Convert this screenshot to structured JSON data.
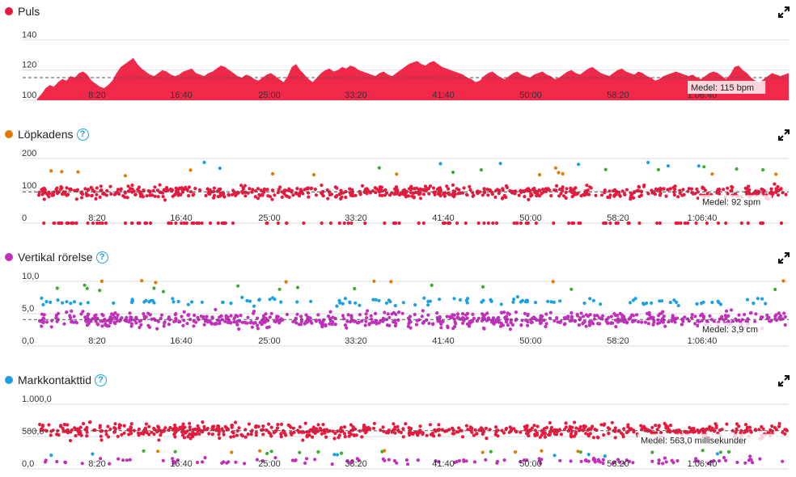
{
  "panels": [
    {
      "id": "puls",
      "title": "Puls",
      "has_help": false,
      "color": "#e8193c",
      "y_ticks": [
        "140",
        "120",
        "100"
      ],
      "x_ticks": [
        "8:20",
        "16:40",
        "25:00",
        "33:20",
        "41:40",
        "50:00",
        "58:20",
        "1:06:40"
      ],
      "average_label": "Medel: 115 bpm",
      "expand_icon": "expand-icon"
    },
    {
      "id": "lopkadens",
      "title": "Löpkadens",
      "has_help": true,
      "color": "#e07b00",
      "y_ticks": [
        "200",
        "100",
        "0"
      ],
      "x_ticks": [
        "8:20",
        "16:40",
        "25:00",
        "33:20",
        "41:40",
        "50:00",
        "58:20",
        "1:06:40"
      ],
      "average_label": "Medel: 92 spm",
      "expand_icon": "expand-icon"
    },
    {
      "id": "vertikal",
      "title": "Vertikal rörelse",
      "has_help": true,
      "color": "#c22fbd",
      "y_ticks": [
        "10,0",
        "5,0",
        "0,0"
      ],
      "x_ticks": [
        "8:20",
        "16:40",
        "25:00",
        "33:20",
        "41:40",
        "50:00",
        "58:20",
        "1:06:40"
      ],
      "average_label": "Medel: 3,9 cm",
      "expand_icon": "expand-icon"
    },
    {
      "id": "markkontakt",
      "title": "Markkontakttid",
      "has_help": true,
      "color": "#1ba1e2",
      "y_ticks": [
        "1.000,0",
        "500,0",
        "0,0"
      ],
      "x_ticks": [
        "8:20",
        "16:40",
        "25:00",
        "33:20",
        "41:40",
        "50:00",
        "58:20",
        "1:06:40"
      ],
      "average_label": "Medel: 563,0 millisekunder",
      "expand_icon": "expand-icon"
    }
  ],
  "chart_data": [
    {
      "type": "area",
      "title": "Puls",
      "ylim": [
        100,
        145
      ],
      "average": 115,
      "x_tick_labels": [
        "8:20",
        "16:40",
        "25:00",
        "33:20",
        "41:40",
        "50:00",
        "58:20",
        "1:06:40"
      ],
      "series": [
        {
          "color": "#f0284a",
          "values": [
            101,
            104,
            108,
            110,
            109,
            112,
            114,
            113,
            116,
            115,
            118,
            119,
            117,
            113,
            111,
            109,
            108,
            110,
            113,
            118,
            122,
            124,
            126,
            128,
            124,
            121,
            119,
            117,
            116,
            118,
            120,
            119,
            117,
            116,
            117,
            119,
            120,
            121,
            118,
            117,
            116,
            118,
            119,
            121,
            123,
            122,
            120,
            118,
            116,
            115,
            117,
            116,
            114,
            113,
            115,
            117,
            118,
            116,
            114,
            112,
            116,
            122,
            124,
            120,
            117,
            114,
            112,
            115,
            118,
            120,
            121,
            119,
            120,
            122,
            121,
            123,
            122,
            120,
            119,
            118,
            117,
            116,
            118,
            119,
            117,
            116,
            118,
            120,
            122,
            124,
            125,
            126,
            124,
            123,
            125,
            126,
            124,
            122,
            121,
            120,
            119,
            118,
            117,
            115,
            114,
            112,
            113,
            116,
            118,
            119,
            117,
            115,
            114,
            116,
            118,
            119,
            117,
            116,
            115,
            117,
            118,
            119,
            117,
            116,
            114,
            115,
            117,
            119,
            120,
            118,
            117,
            119,
            121,
            122,
            120,
            118,
            117,
            116,
            118,
            120,
            121,
            119,
            118,
            117,
            119,
            118,
            116,
            115,
            113,
            114,
            116,
            117,
            118,
            119,
            118,
            117,
            116,
            117,
            115,
            114,
            116,
            118,
            119,
            118,
            116,
            114,
            117,
            122,
            123,
            120,
            118,
            115,
            113,
            112,
            114,
            116,
            118,
            117,
            116,
            117,
            118
          ]
        }
      ]
    },
    {
      "type": "scatter",
      "title": "Löpkadens",
      "ylim": [
        0,
        200
      ],
      "average": 92,
      "x_tick_labels": [
        "8:20",
        "16:40",
        "25:00",
        "33:20",
        "41:40",
        "50:00",
        "58:20",
        "1:06:40"
      ],
      "series": [
        {
          "color": "#e8193c",
          "center": 92,
          "spread": 22
        },
        {
          "color": "#e8193c",
          "center": 0,
          "spread": 0
        },
        {
          "color": "#e07b00",
          "center": 150,
          "spread": 15
        },
        {
          "color": "#3cab2f",
          "center": 160,
          "spread": 10
        },
        {
          "color": "#1ba1e2",
          "center": 170,
          "spread": 10
        }
      ]
    },
    {
      "type": "scatter",
      "title": "Vertikal rörelse",
      "ylim": [
        0,
        10
      ],
      "average": 3.9,
      "x_tick_labels": [
        "8:20",
        "16:40",
        "25:00",
        "33:20",
        "41:40",
        "50:00",
        "58:20",
        "1:06:40"
      ],
      "series": [
        {
          "color": "#c22fbd",
          "center": 3.9,
          "spread": 1.4
        },
        {
          "color": "#1ba1e2",
          "center": 6.5,
          "spread": 0.7
        },
        {
          "color": "#3cab2f",
          "center": 8.5,
          "spread": 0.6
        },
        {
          "color": "#e07b00",
          "center": 9.5,
          "spread": 0.3
        }
      ]
    },
    {
      "type": "scatter",
      "title": "Markkontakttid",
      "ylim": [
        0,
        1000
      ],
      "average": 563,
      "x_tick_labels": [
        "8:20",
        "16:40",
        "25:00",
        "33:20",
        "41:40",
        "50:00",
        "58:20",
        "1:06:40"
      ],
      "series": [
        {
          "color": "#e8193c",
          "center": 563,
          "spread": 130
        },
        {
          "color": "#c22fbd",
          "center": 120,
          "spread": 60
        },
        {
          "color": "#3cab2f",
          "center": 250,
          "spread": 30
        },
        {
          "color": "#1ba1e2",
          "center": 220,
          "spread": 30
        },
        {
          "color": "#e07b00",
          "center": 260,
          "spread": 30
        }
      ]
    }
  ]
}
